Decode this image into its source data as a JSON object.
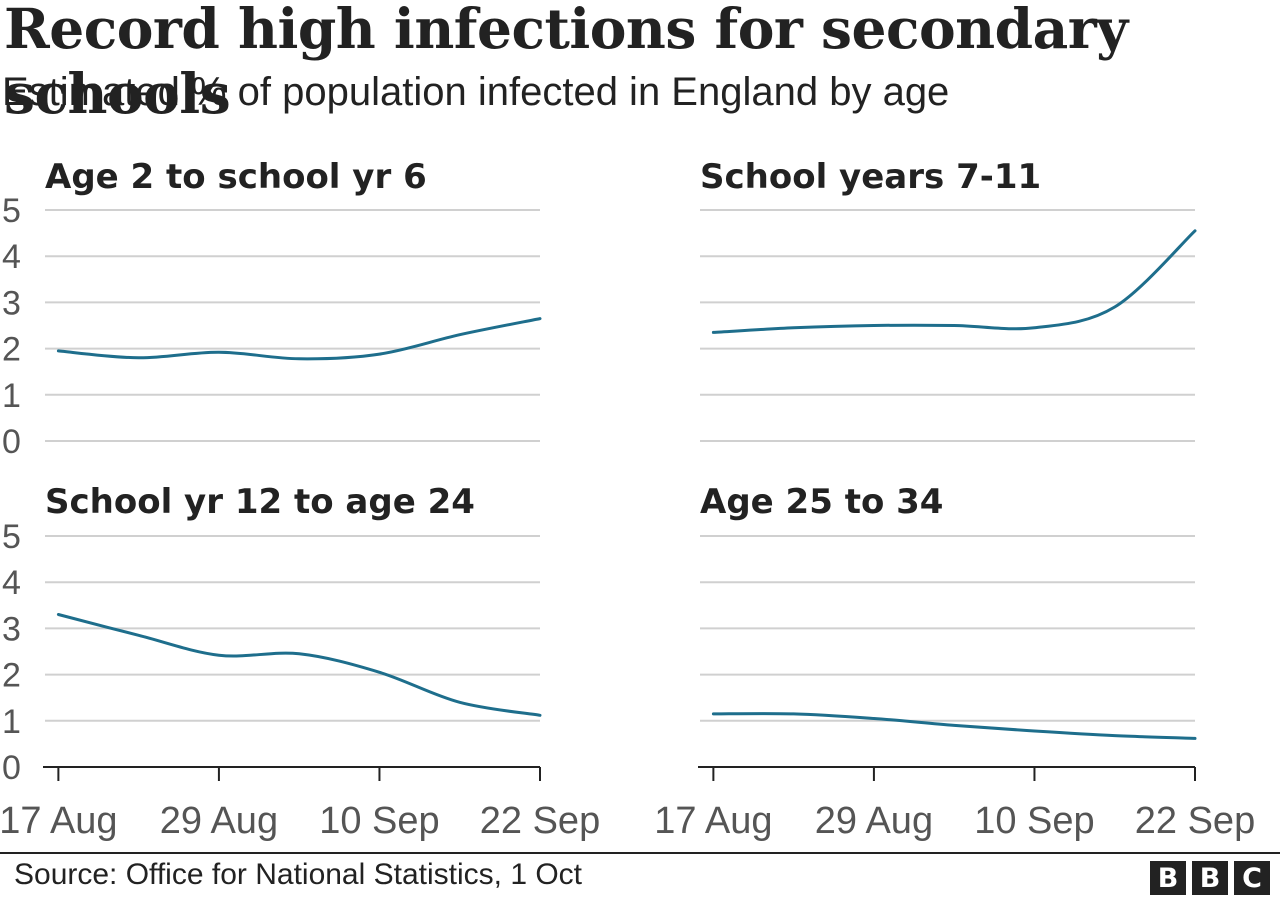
{
  "title": "Record high infections for secondary schools",
  "subtitle": "Estimated % of population infected in England by age",
  "source": "Source: Office for National Statistics, 1 Oct",
  "logo": [
    "B",
    "B",
    "C"
  ],
  "colors": {
    "line": "#1e6e8c",
    "grid": "#d0d0d0",
    "axis": "#222222",
    "tick_text": "#555555"
  },
  "chart_data": [
    {
      "type": "line",
      "title": "Age 2 to school yr 6",
      "x": [
        "2021-08-17",
        "2021-08-23",
        "2021-08-29",
        "2021-09-04",
        "2021-09-10",
        "2021-09-16",
        "2021-09-22"
      ],
      "series": [
        {
          "values": [
            1.95,
            1.8,
            1.92,
            1.78,
            1.88,
            2.3,
            2.65
          ]
        }
      ],
      "ylim": [
        0,
        5
      ],
      "yticks": [
        "0",
        "1",
        "2",
        "3",
        "4",
        "5"
      ],
      "xticks": [
        "17 Aug",
        "29 Aug",
        "10 Sep",
        "22 Sep"
      ],
      "grid": true
    },
    {
      "type": "line",
      "title": "School years 7-11",
      "x": [
        "2021-08-17",
        "2021-08-23",
        "2021-08-29",
        "2021-09-04",
        "2021-09-10",
        "2021-09-16",
        "2021-09-22"
      ],
      "series": [
        {
          "values": [
            2.35,
            2.45,
            2.5,
            2.5,
            2.45,
            2.9,
            4.55
          ]
        }
      ],
      "ylim": [
        0,
        5
      ],
      "yticks": [
        "0",
        "1",
        "2",
        "3",
        "4",
        "5"
      ],
      "xticks": [
        "17 Aug",
        "29 Aug",
        "10 Sep",
        "22 Sep"
      ],
      "grid": true
    },
    {
      "type": "line",
      "title": "School yr 12 to age 24",
      "x": [
        "2021-08-17",
        "2021-08-23",
        "2021-08-29",
        "2021-09-04",
        "2021-09-10",
        "2021-09-16",
        "2021-09-22"
      ],
      "series": [
        {
          "values": [
            3.3,
            2.85,
            2.42,
            2.45,
            2.05,
            1.4,
            1.12
          ]
        }
      ],
      "ylim": [
        0,
        5
      ],
      "yticks": [
        "0",
        "1",
        "2",
        "3",
        "4",
        "5"
      ],
      "xticks": [
        "17 Aug",
        "29 Aug",
        "10 Sep",
        "22 Sep"
      ],
      "grid": true
    },
    {
      "type": "line",
      "title": "Age 25 to 34",
      "x": [
        "2021-08-17",
        "2021-08-23",
        "2021-08-29",
        "2021-09-04",
        "2021-09-10",
        "2021-09-16",
        "2021-09-22"
      ],
      "series": [
        {
          "values": [
            1.15,
            1.15,
            1.05,
            0.9,
            0.78,
            0.68,
            0.62
          ]
        }
      ],
      "ylim": [
        0,
        5
      ],
      "yticks": [
        "0",
        "1",
        "2",
        "3",
        "4",
        "5"
      ],
      "xticks": [
        "17 Aug",
        "29 Aug",
        "10 Sep",
        "22 Sep"
      ],
      "grid": true
    }
  ]
}
